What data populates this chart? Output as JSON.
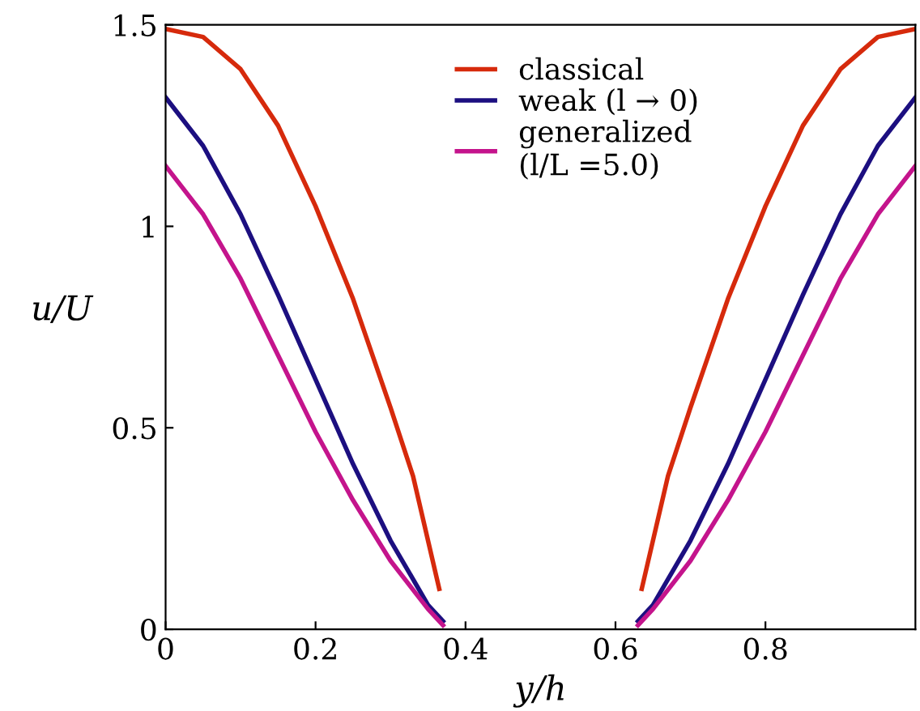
{
  "chart_data": {
    "type": "line",
    "xlabel": "y/h",
    "ylabel": "u/U",
    "xlim": [
      0,
      1
    ],
    "ylim": [
      0,
      1.5
    ],
    "xticks": [
      0,
      0.2,
      0.4,
      0.6,
      0.8
    ],
    "yticks": [
      0,
      0.5,
      1,
      1.5
    ],
    "grid": false,
    "legend": "top",
    "marker": "none",
    "line_style": "solid",
    "series": [
      {
        "name": "classical",
        "color": "#d62a0c",
        "x": [
          0,
          0.05,
          0.1,
          0.15,
          0.2,
          0.25,
          0.3,
          0.33,
          0.365,
          null,
          0.635,
          0.67,
          0.7,
          0.75,
          0.8,
          0.85,
          0.9,
          0.95,
          1.0
        ],
        "values": [
          1.49,
          1.47,
          1.39,
          1.25,
          1.05,
          0.82,
          0.55,
          0.38,
          0.1,
          null,
          0.1,
          0.38,
          0.55,
          0.82,
          1.05,
          1.25,
          1.39,
          1.47,
          1.49
        ]
      },
      {
        "name": "weak (l → 0)",
        "color": "#1c0f80",
        "x": [
          0,
          0.05,
          0.1,
          0.15,
          0.2,
          0.25,
          0.3,
          0.35,
          0.37,
          null,
          0.63,
          0.65,
          0.7,
          0.75,
          0.8,
          0.85,
          0.9,
          0.95,
          1.0
        ],
        "values": [
          1.32,
          1.2,
          1.03,
          0.83,
          0.62,
          0.41,
          0.22,
          0.06,
          0.02,
          null,
          0.02,
          0.06,
          0.22,
          0.41,
          0.62,
          0.83,
          1.03,
          1.2,
          1.32
        ]
      },
      {
        "name": "generalized\n(l/L =5.0)",
        "color": "#c4148c",
        "x": [
          0,
          0.05,
          0.1,
          0.15,
          0.2,
          0.25,
          0.3,
          0.35,
          0.37,
          null,
          0.63,
          0.65,
          0.7,
          0.75,
          0.8,
          0.85,
          0.9,
          0.95,
          1.0
        ],
        "values": [
          1.15,
          1.03,
          0.87,
          0.68,
          0.49,
          0.32,
          0.17,
          0.05,
          0.01,
          null,
          0.01,
          0.05,
          0.17,
          0.32,
          0.49,
          0.68,
          0.87,
          1.03,
          1.15
        ]
      }
    ]
  }
}
